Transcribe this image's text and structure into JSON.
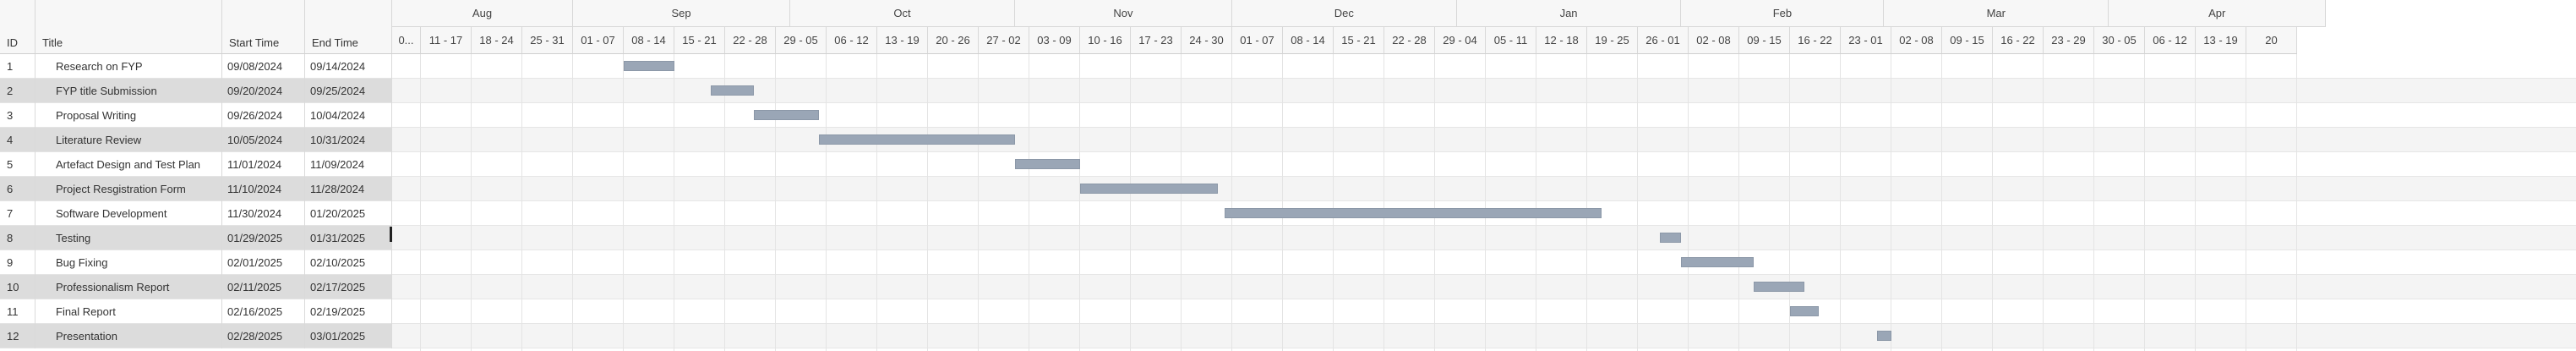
{
  "grid": {
    "headers": {
      "id": "ID",
      "title": "Title",
      "start": "Start Time",
      "end": "End Time"
    },
    "rows": [
      {
        "id": "1",
        "title": "Research on FYP",
        "start": "09/08/2024",
        "end": "09/14/2024"
      },
      {
        "id": "2",
        "title": "FYP title Submission",
        "start": "09/20/2024",
        "end": "09/25/2024"
      },
      {
        "id": "3",
        "title": "Proposal Writing",
        "start": "09/26/2024",
        "end": "10/04/2024"
      },
      {
        "id": "4",
        "title": "Literature Review",
        "start": "10/05/2024",
        "end": "10/31/2024"
      },
      {
        "id": "5",
        "title": "Artefact Design and Test Plan",
        "start": "11/01/2024",
        "end": "11/09/2024"
      },
      {
        "id": "6",
        "title": "Project Resgistration Form",
        "start": "11/10/2024",
        "end": "11/28/2024"
      },
      {
        "id": "7",
        "title": "Software Development",
        "start": "11/30/2024",
        "end": "01/20/2025"
      },
      {
        "id": "8",
        "title": "Testing",
        "start": "01/29/2025",
        "end": "01/31/2025"
      },
      {
        "id": "9",
        "title": "Bug Fixing",
        "start": "02/01/2025",
        "end": "02/10/2025"
      },
      {
        "id": "10",
        "title": "Professionalism Report",
        "start": "02/11/2025",
        "end": "02/17/2025"
      },
      {
        "id": "11",
        "title": "Final Report",
        "start": "02/16/2025",
        "end": "02/19/2025"
      },
      {
        "id": "12",
        "title": "Presentation",
        "start": "02/28/2025",
        "end": "03/01/2025"
      }
    ]
  },
  "timeline": {
    "months": [
      "Aug",
      "Sep",
      "Oct",
      "Nov",
      "Dec",
      "Jan",
      "Feb",
      "Mar",
      "Apr"
    ],
    "weeks": [
      "0...",
      "11 - 17",
      "18 - 24",
      "25 - 31",
      "01 - 07",
      "08 - 14",
      "15 - 21",
      "22 - 28",
      "29 - 05",
      "06 - 12",
      "13 - 19",
      "20 - 26",
      "27 - 02",
      "03 - 09",
      "10 - 16",
      "17 - 23",
      "24 - 30",
      "01 - 07",
      "08 - 14",
      "15 - 21",
      "22 - 28",
      "29 - 04",
      "05 - 11",
      "12 - 18",
      "19 - 25",
      "26 - 01",
      "02 - 08",
      "09 - 15",
      "16 - 22",
      "23 - 01",
      "02 - 08",
      "09 - 15",
      "16 - 22",
      "23 - 29",
      "30 - 05",
      "06 - 12",
      "13 - 19",
      "20"
    ],
    "bar_color": "#9aa6b6"
  }
}
